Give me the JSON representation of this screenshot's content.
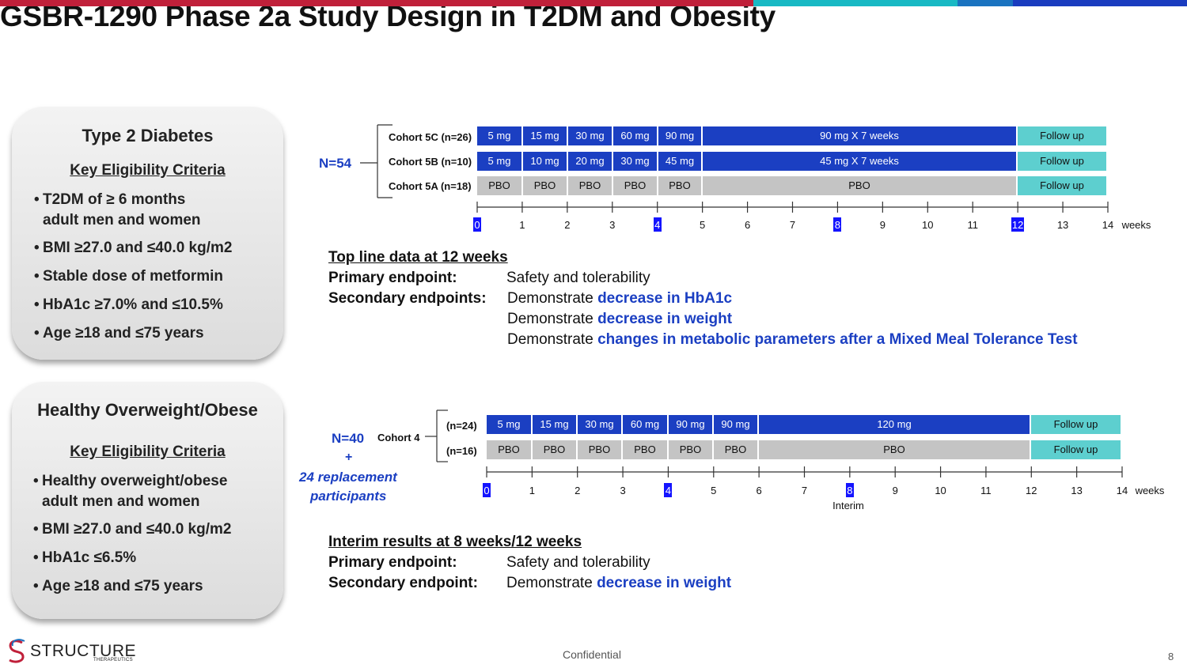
{
  "header": {
    "title": "GSBR-1290 Phase 2a Study Design in T2DM and Obesity",
    "colors": {
      "red": "#c0203a",
      "teal": "#19b9c4",
      "blue": "#1a73c0",
      "navy": "#1a3cbf"
    }
  },
  "t2d_card": {
    "title": "Type 2 Diabetes",
    "subtitle": "Key Eligibility Criteria",
    "criteria": [
      "T2DM of ≥ 6 months",
      "adult men and women",
      "BMI ≥27.0 and ≤40.0 kg/m2",
      "Stable dose of metformin",
      "HbA1c ≥7.0% and ≤10.5%",
      "Age ≥18 and ≤75 years"
    ]
  },
  "obese_card": {
    "title": "Healthy Overweight/Obese",
    "subtitle": "Key Eligibility Criteria",
    "criteria": [
      "Healthy overweight/obese",
      "adult men and women",
      "BMI ≥27.0 and ≤40.0 kg/m2",
      "HbA1c ≤6.5%",
      "Age ≥18 and ≤75 years"
    ]
  },
  "t2d_design": {
    "n_label": "N=54",
    "cohorts": [
      {
        "label": "Cohort 5C (n=26)",
        "segments": [
          "5 mg",
          "15 mg",
          "30 mg",
          "60 mg",
          "90 mg",
          "90 mg X 7 weeks",
          "Follow up"
        ]
      },
      {
        "label": "Cohort 5B (n=10)",
        "segments": [
          "5 mg",
          "10 mg",
          "20 mg",
          "30 mg",
          "45 mg",
          "45 mg X 7 weeks",
          "Follow up"
        ]
      },
      {
        "label": "Cohort 5A (n=18)",
        "segments": [
          "PBO",
          "PBO",
          "PBO",
          "PBO",
          "PBO",
          "PBO",
          "Follow up"
        ]
      }
    ],
    "weeks": [
      "0",
      "1",
      "2",
      "3",
      "4",
      "5",
      "6",
      "7",
      "8",
      "9",
      "10",
      "11",
      "12",
      "13",
      "14"
    ],
    "highlighted_weeks": [
      "0",
      "4",
      "8",
      "12"
    ],
    "axis_label": "weeks"
  },
  "t2d_endpoints": {
    "heading": "Top line data at 12 weeks",
    "primary_label": "Primary endpoint:",
    "primary_value": "Safety and tolerability",
    "secondary_label": "Secondary endpoints:",
    "demonstrate": "Demonstrate",
    "secondary_items": [
      "decrease in HbA1c",
      "decrease in weight",
      "changes in metabolic parameters after a Mixed Meal Tolerance Test"
    ]
  },
  "obese_design": {
    "n_label": "N=40",
    "plus": "+",
    "replacement_line1": "24 replacement",
    "replacement_line2": "participants",
    "cohort_label": "Cohort 4",
    "arms": [
      {
        "label": "(n=24)",
        "segments": [
          "5 mg",
          "15 mg",
          "30 mg",
          "60 mg",
          "90 mg",
          "90 mg",
          "120 mg",
          "Follow up"
        ]
      },
      {
        "label": "(n=16)",
        "segments": [
          "PBO",
          "PBO",
          "PBO",
          "PBO",
          "PBO",
          "PBO",
          "PBO",
          "Follow up"
        ]
      }
    ],
    "weeks": [
      "0",
      "1",
      "2",
      "3",
      "4",
      "5",
      "6",
      "7",
      "8",
      "9",
      "10",
      "11",
      "12",
      "13",
      "14"
    ],
    "highlighted_weeks": [
      "0",
      "4",
      "8"
    ],
    "axis_label": "weeks",
    "interim_label": "Interim"
  },
  "obese_endpoints": {
    "heading": "Interim results at 8 weeks/12 weeks",
    "primary_label": "Primary endpoint:",
    "primary_value": "Safety and tolerability",
    "secondary_label": "Secondary endpoint:",
    "demonstrate": "Demonstrate",
    "secondary_item": "decrease in weight"
  },
  "footer": {
    "logo_text": "STRUCTURE",
    "logo_sub": "THERAPEUTICS",
    "confidential": "Confidential",
    "page_number": "8"
  }
}
